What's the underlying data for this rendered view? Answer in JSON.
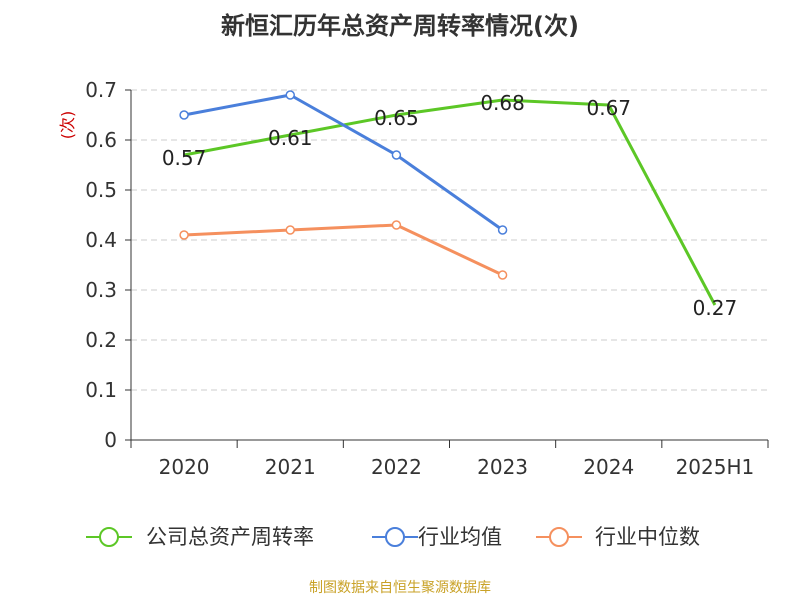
{
  "chart_data": {
    "type": "line",
    "title": "新恒汇历年总资产周转率情况(次)",
    "ylabel": "(次)",
    "xlabel": "",
    "categories": [
      "2020",
      "2021",
      "2022",
      "2023",
      "2024",
      "2025H1"
    ],
    "ylim": [
      0,
      0.7
    ],
    "yticks": [
      "0",
      "0.1",
      "0.2",
      "0.3",
      "0.4",
      "0.5",
      "0.6",
      "0.7"
    ],
    "grid": true,
    "legend_position": "bottom",
    "series": [
      {
        "name": "公司总资产周转率",
        "color": "#5cc726",
        "values": [
          0.57,
          0.61,
          0.65,
          0.68,
          0.67,
          0.27
        ],
        "data_labels": [
          "0.57",
          "0.61",
          "0.65",
          "0.68",
          "0.67",
          "0.27"
        ],
        "markers": false
      },
      {
        "name": "行业均值",
        "color": "#4a7fdb",
        "values": [
          0.65,
          0.69,
          0.57,
          0.42,
          null,
          null
        ],
        "markers": true
      },
      {
        "name": "行业中位数",
        "color": "#f5905e",
        "values": [
          0.41,
          0.42,
          0.43,
          0.33,
          null,
          null
        ],
        "markers": true
      }
    ]
  },
  "footer": {
    "source": "制图数据来自恒生聚源数据库"
  }
}
